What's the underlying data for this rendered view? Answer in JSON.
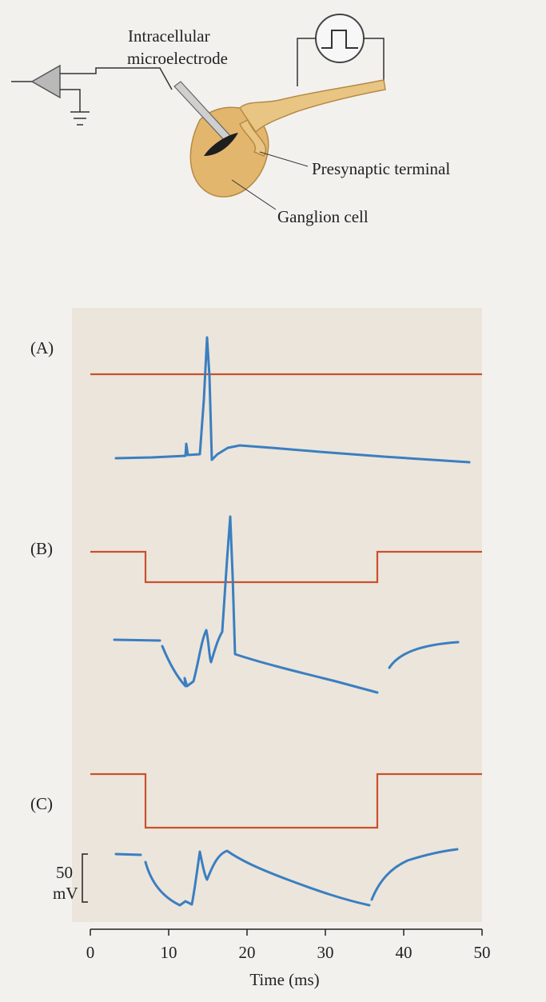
{
  "diagram": {
    "electrode_label": [
      "Intracellular",
      "microelectrode"
    ],
    "terminal_label": "Presynaptic terminal",
    "cell_label": "Ganglion cell"
  },
  "plot": {
    "panels": [
      "(A)",
      "(B)",
      "(C)"
    ],
    "scale_bar": {
      "value": "50",
      "unit": "mV"
    },
    "x_axis": {
      "label": "Time (ms)",
      "xlim": [
        0,
        50
      ],
      "xticks": [
        0,
        10,
        20,
        30,
        40,
        50
      ]
    }
  }
}
